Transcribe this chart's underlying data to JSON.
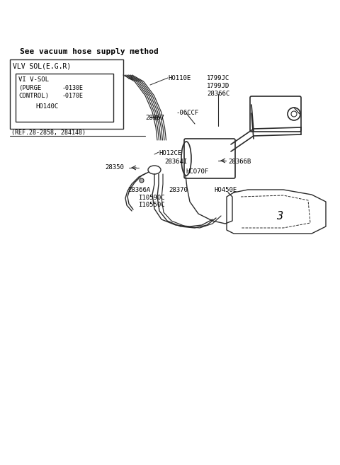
{
  "title": "See vacuum hose supply method",
  "background_color": "#ffffff",
  "text_color": "#000000",
  "diagram_color": "#2a2a2a",
  "figsize": [
    4.8,
    6.57
  ],
  "dpi": 100,
  "labels": {
    "vlv_sol_egr": "VLV SOL(E.G.R)",
    "vi_v_sol": "VI V-SOL",
    "purge": "(PURGE",
    "control": "CONTROL)",
    "ref_line": "(REF.28-2858, 284148)",
    "ho110e": "HO110E",
    "ho140c": "HO140C",
    "ho12ce": "HO12CE",
    "hco70f": "HCO70F",
    "ho450e": "HO450E",
    "label_0130e": "-0130E",
    "label_0170e": "-0170E",
    "label_28367": "28367",
    "label_28350": "28350",
    "label_283641": "28364I",
    "label_28366a": "28366A",
    "label_28366b": "28366B",
    "label_28370": "28370",
    "label_06ccf": "-06CCF",
    "label_1799jc": "1799JC",
    "label_1799jd": "1799JD",
    "label_28366c": "28366C",
    "label_i10590c": "I10590C",
    "label_i10550c": "I10550C"
  }
}
